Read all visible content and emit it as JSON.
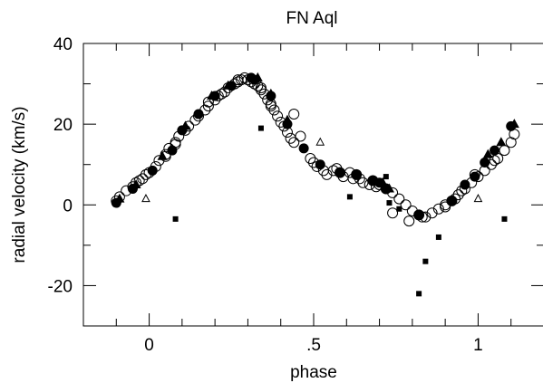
{
  "chart_data": {
    "type": "scatter",
    "title": "FN Aql",
    "xlabel": "phase",
    "ylabel": "radial velocity (km/s)",
    "xlim": [
      -0.2,
      1.2
    ],
    "ylim": [
      -30,
      40
    ],
    "x_ticks": [
      {
        "value": 0,
        "label": "0"
      },
      {
        "value": 0.5,
        "label": ".5"
      },
      {
        "value": 1,
        "label": "1"
      }
    ],
    "y_ticks": [
      {
        "value": -20,
        "label": "-20"
      },
      {
        "value": 0,
        "label": "0"
      },
      {
        "value": 20,
        "label": "20"
      },
      {
        "value": 40,
        "label": "40"
      }
    ],
    "x_minor_step": 0.1,
    "y_minor_step": 10,
    "grid": false,
    "series": [
      {
        "marker": "open-circle",
        "points": [
          [
            -0.1,
            1.0
          ],
          [
            -0.09,
            2.0
          ],
          [
            -0.07,
            3.5
          ],
          [
            -0.05,
            4.5
          ],
          [
            -0.04,
            5.5
          ],
          [
            -0.02,
            6.5
          ],
          [
            -0.01,
            7.5
          ],
          [
            0.0,
            8.0
          ],
          [
            0.02,
            9.5
          ],
          [
            0.03,
            11.0
          ],
          [
            0.05,
            12.5
          ],
          [
            0.06,
            14.0
          ],
          [
            0.08,
            15.5
          ],
          [
            0.09,
            17.0
          ],
          [
            0.11,
            18.5
          ],
          [
            0.12,
            19.5
          ],
          [
            0.14,
            21.0
          ],
          [
            0.15,
            22.0
          ],
          [
            0.17,
            23.5
          ],
          [
            0.18,
            24.5
          ],
          [
            0.2,
            26.0
          ],
          [
            0.21,
            27.0
          ],
          [
            0.23,
            28.0
          ],
          [
            0.24,
            29.0
          ],
          [
            0.26,
            30.0
          ],
          [
            0.27,
            30.5
          ],
          [
            0.28,
            31.0
          ],
          [
            0.29,
            31.5
          ],
          [
            0.3,
            31.0
          ],
          [
            0.31,
            30.5
          ],
          [
            0.32,
            30.0
          ],
          [
            0.33,
            29.5
          ],
          [
            0.34,
            28.5
          ],
          [
            0.35,
            27.5
          ],
          [
            0.36,
            26.0
          ],
          [
            0.37,
            25.0
          ],
          [
            0.38,
            23.5
          ],
          [
            0.39,
            22.0
          ],
          [
            0.4,
            20.5
          ],
          [
            0.41,
            19.5
          ],
          [
            0.42,
            18.0
          ],
          [
            0.43,
            16.5
          ],
          [
            0.44,
            15.5
          ],
          [
            0.44,
            22.5
          ],
          [
            0.46,
            17.0
          ],
          [
            0.49,
            11.5
          ],
          [
            0.5,
            10.5
          ],
          [
            0.51,
            9.5
          ],
          [
            0.53,
            8.5
          ],
          [
            0.54,
            7.5
          ],
          [
            0.56,
            8.5
          ],
          [
            0.58,
            8.0
          ],
          [
            0.59,
            7.0
          ],
          [
            0.61,
            8.0
          ],
          [
            0.63,
            7.5
          ],
          [
            0.64,
            6.5
          ],
          [
            0.65,
            5.5
          ],
          [
            0.67,
            5.0
          ],
          [
            0.68,
            6.0
          ],
          [
            0.7,
            5.0
          ],
          [
            0.72,
            4.0
          ],
          [
            0.74,
            3.0
          ],
          [
            0.76,
            1.5
          ],
          [
            0.78,
            0.0
          ],
          [
            0.8,
            -1.5
          ],
          [
            0.82,
            -2.5
          ],
          [
            0.84,
            -3.0
          ],
          [
            0.86,
            -2.0
          ],
          [
            0.88,
            -1.0
          ],
          [
            0.9,
            0.0
          ],
          [
            0.92,
            1.0
          ],
          [
            0.94,
            2.5
          ],
          [
            0.96,
            4.0
          ],
          [
            0.98,
            5.5
          ],
          [
            1.0,
            7.0
          ],
          [
            1.02,
            8.5
          ],
          [
            1.04,
            10.0
          ],
          [
            1.06,
            11.5
          ],
          [
            1.08,
            13.5
          ],
          [
            1.1,
            15.5
          ],
          [
            1.11,
            17.5
          ],
          [
            0.95,
            3.5
          ],
          [
            0.9,
            -0.5
          ],
          [
            0.74,
            -2.0
          ],
          [
            0.79,
            -4.0
          ],
          [
            0.83,
            -3.0
          ],
          [
            0.08,
            15.0
          ],
          [
            0.22,
            27.5
          ],
          [
            0.37,
            24.5
          ],
          [
            0.62,
            6.5
          ],
          [
            -0.03,
            6.0
          ],
          [
            0.05,
            12.0
          ],
          [
            0.18,
            25.5
          ],
          [
            0.34,
            29.0
          ],
          [
            0.57,
            9.0
          ],
          [
            0.69,
            4.5
          ],
          [
            0.93,
            1.5
          ],
          [
            0.99,
            7.5
          ],
          [
            1.05,
            11.0
          ],
          [
            0.27,
            31.0
          ]
        ]
      },
      {
        "marker": "filled-circle",
        "points": [
          [
            -0.1,
            0.5
          ],
          [
            -0.05,
            4.0
          ],
          [
            0.01,
            8.5
          ],
          [
            0.07,
            13.5
          ],
          [
            0.1,
            18.5
          ],
          [
            0.2,
            27.0
          ],
          [
            0.25,
            29.5
          ],
          [
            0.31,
            31.5
          ],
          [
            0.37,
            27.0
          ],
          [
            0.42,
            20.0
          ],
          [
            0.52,
            10.0
          ],
          [
            0.58,
            8.0
          ],
          [
            0.63,
            7.5
          ],
          [
            0.68,
            6.0
          ],
          [
            0.7,
            5.5
          ],
          [
            0.82,
            -2.5
          ],
          [
            0.92,
            1.0
          ],
          [
            0.96,
            5.0
          ],
          [
            1.02,
            10.5
          ],
          [
            1.05,
            13.5
          ],
          [
            1.1,
            19.5
          ],
          [
            0.15,
            22.5
          ],
          [
            0.32,
            31.0
          ],
          [
            0.47,
            14.0
          ],
          [
            0.72,
            4.0
          ],
          [
            0.99,
            7.0
          ]
        ]
      },
      {
        "marker": "filled-triangle",
        "points": [
          [
            -0.09,
            1.5
          ],
          [
            -0.04,
            5.0
          ],
          [
            0.04,
            12.0
          ],
          [
            0.11,
            19.5
          ],
          [
            0.19,
            27.0
          ],
          [
            0.24,
            29.5
          ],
          [
            0.33,
            31.5
          ],
          [
            0.37,
            27.5
          ],
          [
            0.42,
            21.0
          ],
          [
            0.71,
            5.5
          ],
          [
            0.73,
            4.0
          ],
          [
            1.03,
            12.5
          ],
          [
            1.07,
            15.5
          ],
          [
            1.11,
            20.0
          ]
        ]
      },
      {
        "marker": "open-triangle",
        "points": [
          [
            -0.01,
            1.5
          ],
          [
            0.52,
            15.5
          ],
          [
            1.0,
            1.5
          ]
        ]
      },
      {
        "marker": "filled-square",
        "points": [
          [
            0.08,
            -3.5
          ],
          [
            0.34,
            19.0
          ],
          [
            0.61,
            2.0
          ],
          [
            0.72,
            7.0
          ],
          [
            0.73,
            0.5
          ],
          [
            0.76,
            -1.0
          ],
          [
            0.82,
            -22.0
          ],
          [
            0.84,
            -14.0
          ],
          [
            0.88,
            -8.0
          ],
          [
            1.08,
            -3.5
          ]
        ]
      }
    ]
  }
}
